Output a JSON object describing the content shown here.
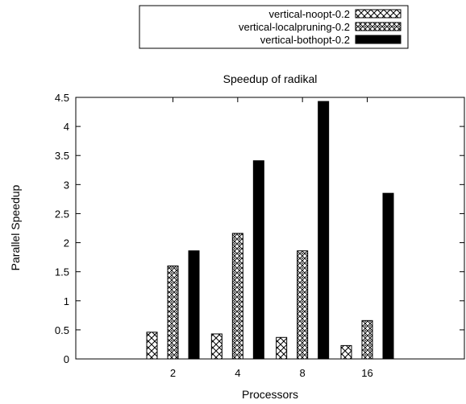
{
  "chart_data": {
    "type": "bar",
    "title": "Speedup of radikal",
    "xlabel": "Processors",
    "ylabel": "Parallel Speedup",
    "categories": [
      "2",
      "4",
      "8",
      "16"
    ],
    "ylim": [
      0,
      4.5
    ],
    "yticks": [
      0,
      0.5,
      1,
      1.5,
      2,
      2.5,
      3,
      3.5,
      4,
      4.5
    ],
    "ytick_labels": [
      "0",
      "0.5",
      "1",
      "1.5",
      "2",
      "2.5",
      "3",
      "3.5",
      "4",
      "4.5"
    ],
    "grid": false,
    "legend_position": "top-center, above plot",
    "series": [
      {
        "name": "vertical-noopt-0.2",
        "pattern": "crosshatch",
        "values": [
          0.46,
          0.43,
          0.37,
          0.23
        ]
      },
      {
        "name": "vertical-localpruning-0.2",
        "pattern": "dotted-diamonds",
        "values": [
          1.6,
          2.16,
          1.86,
          0.66
        ]
      },
      {
        "name": "vertical-bothopt-0.2",
        "pattern": "solid-black",
        "values": [
          1.86,
          3.41,
          4.43,
          2.85
        ]
      }
    ]
  }
}
